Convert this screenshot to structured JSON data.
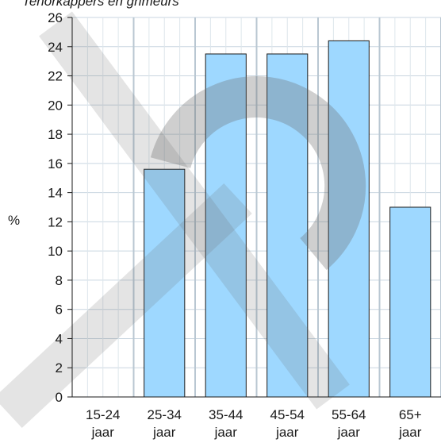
{
  "chart_data": {
    "type": "bar",
    "title": "Tenorkappers en grimeurs",
    "ylabel": "%",
    "xlabel": "",
    "categories": [
      [
        "15-24",
        "jaar"
      ],
      [
        "25-34",
        "jaar"
      ],
      [
        "35-44",
        "jaar"
      ],
      [
        "45-54",
        "jaar"
      ],
      [
        "55-64",
        "jaar"
      ],
      [
        "65+",
        "jaar"
      ]
    ],
    "values": [
      0,
      15.6,
      23.5,
      23.5,
      24.4,
      13.0
    ],
    "ylim": [
      0,
      26
    ],
    "yticks": [
      0,
      2,
      4,
      6,
      8,
      10,
      12,
      14,
      16,
      18,
      20,
      22,
      24,
      26
    ],
    "grid": true,
    "bar_color": "#9ed8ff",
    "bar_edge_color": "#1a1a1a",
    "grid_color": "#c9d6e0",
    "watermark_color": "#6a6a6a"
  }
}
